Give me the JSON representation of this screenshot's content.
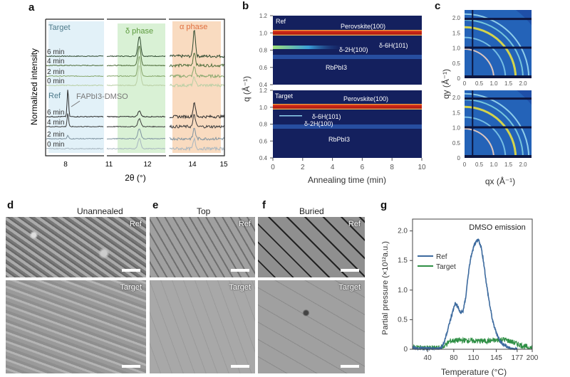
{
  "panel_labels": {
    "a": "a",
    "b": "b",
    "c": "c",
    "d": "d",
    "e": "e",
    "f": "f",
    "g": "g"
  },
  "colors": {
    "target_green": "#3f7d3f",
    "ref_gray": "#3a3a3a",
    "delta_bg": "#cfeecb",
    "alpha_bg": "#f7d2b0",
    "dmso_bg": "#d6ebf5",
    "heat_bg": "#14205e",
    "ref_line": "#3c6a9e",
    "target_line": "#2f8f45"
  },
  "chart_data": [
    {
      "id": "a",
      "type": "line",
      "xlabel": "2θ (°)",
      "ylabel": "Normalized intensity",
      "xticks": [
        "8",
        "11",
        "12",
        "14",
        "15"
      ],
      "broken_axis_segments": [
        [
          6.5,
          11
        ],
        [
          11,
          12.44
        ],
        [
          13.27,
          15
        ]
      ],
      "region_labels": {
        "delta": "δ phase",
        "alpha": "α phase",
        "dmso": "FAPbI3-DMSO"
      },
      "groups": {
        "target": "Target",
        "ref": "Ref"
      },
      "series": [
        {
          "group": "target",
          "name": "6 min",
          "peaks": {
            "dmso": 0,
            "delta": 1.0,
            "alpha": 1.0
          }
        },
        {
          "group": "target",
          "name": "4 min",
          "peaks": {
            "dmso": 0,
            "delta": 1.0,
            "alpha": 0.5
          }
        },
        {
          "group": "target",
          "name": "2 min",
          "peaks": {
            "dmso": 0,
            "delta": 1.0,
            "alpha": 0.35
          }
        },
        {
          "group": "target",
          "name": "0 min",
          "peaks": {
            "dmso": 0,
            "delta": 1.0,
            "alpha": 0.3
          }
        },
        {
          "group": "ref",
          "name": "6 min",
          "peaks": {
            "dmso": 1.0,
            "delta": 0.5,
            "alpha": 0.55
          }
        },
        {
          "group": "ref",
          "name": "4 min",
          "peaks": {
            "dmso": 0.5,
            "delta": 0.7,
            "alpha": 0.45
          }
        },
        {
          "group": "ref",
          "name": "2 min",
          "peaks": {
            "dmso": 0.12,
            "delta": 0.9,
            "alpha": 0.4
          }
        },
        {
          "group": "ref",
          "name": "0 min",
          "peaks": {
            "dmso": 0.03,
            "delta": 0.9,
            "alpha": 0.35
          }
        }
      ],
      "peak_positions": {
        "dmso": 8.2,
        "delta": 11.8,
        "alpha": 14.05
      }
    },
    {
      "id": "b",
      "type": "heatmap",
      "xlabel": "Annealing time (min)",
      "ylabel": "q (Å⁻¹)",
      "xlim": [
        0,
        10
      ],
      "ylim": [
        0.4,
        1.2
      ],
      "xticks": [
        "0",
        "2",
        "4",
        "6",
        "8",
        "10"
      ],
      "yticks": [
        "1.2",
        "1.0",
        "0.8",
        "0.6",
        "0.4"
      ],
      "panels": [
        {
          "name": "Ref",
          "labels": [
            "Perovskite(100)",
            "δ-2H(100)",
            "δ-6H(101)",
            "RbPbI3"
          ]
        },
        {
          "name": "Target",
          "labels": [
            "Perovskite(100)",
            "δ-6H(101)",
            "δ-2H(100)",
            "RbPbI3"
          ]
        }
      ]
    },
    {
      "id": "c",
      "type": "heatmap",
      "xlabel": "qx (Å⁻¹)",
      "ylabel": "qy (Å⁻¹)",
      "xticks": [
        "0",
        "0.5",
        "1.0",
        "1.5",
        "2.0"
      ],
      "yticks": [
        "2.0",
        "1.5",
        "1.0",
        "0.5",
        "0"
      ],
      "ring_q": [
        1.0,
        1.4,
        1.75,
        2.0,
        2.2
      ]
    },
    {
      "id": "g",
      "type": "line",
      "title": "DMSO emission",
      "xlabel": "Temperature (°C)",
      "ylabel": "Partial pressure (×10¹²a.u.)",
      "xlim": [
        17,
        200
      ],
      "ylim": [
        0,
        2.2
      ],
      "xticks": [
        40,
        80,
        110,
        145,
        177,
        200
      ],
      "yticks": [
        0,
        0.5,
        1.0,
        1.5,
        2.0
      ],
      "ytick_labels": [
        "0",
        "0.5",
        "1.0",
        "1.5",
        "2.0"
      ],
      "xtick_labels": [
        "40",
        "80",
        "110",
        "145",
        "177",
        "200"
      ],
      "legend": "left",
      "series": [
        {
          "name": "Ref",
          "x": [
            17,
            50,
            60,
            65,
            70,
            75,
            82,
            86,
            90,
            94,
            98,
            102,
            106,
            112,
            118,
            122,
            126,
            130,
            135,
            140,
            146,
            152,
            160,
            168,
            177
          ],
          "y": [
            0.02,
            0.01,
            0.02,
            0.1,
            0.3,
            0.5,
            0.78,
            0.72,
            0.62,
            0.64,
            0.85,
            1.25,
            1.55,
            1.78,
            1.85,
            1.72,
            1.45,
            1.1,
            0.75,
            0.45,
            0.25,
            0.12,
            0.05,
            0.01,
            0.0
          ]
        },
        {
          "name": "Target",
          "x": [
            17,
            40,
            60,
            65,
            70,
            75,
            85,
            100,
            115,
            130,
            145,
            155,
            165,
            175,
            185,
            195,
            200
          ],
          "y": [
            0.03,
            0.02,
            0.02,
            0.05,
            0.1,
            0.14,
            0.15,
            0.15,
            0.14,
            0.14,
            0.15,
            0.17,
            0.14,
            0.1,
            0.06,
            0.03,
            0.02
          ]
        }
      ]
    }
  ],
  "sem": {
    "d_title": "Unannealed",
    "e_title": "Top",
    "f_title": "Buried",
    "ref": "Ref",
    "target": "Target"
  }
}
